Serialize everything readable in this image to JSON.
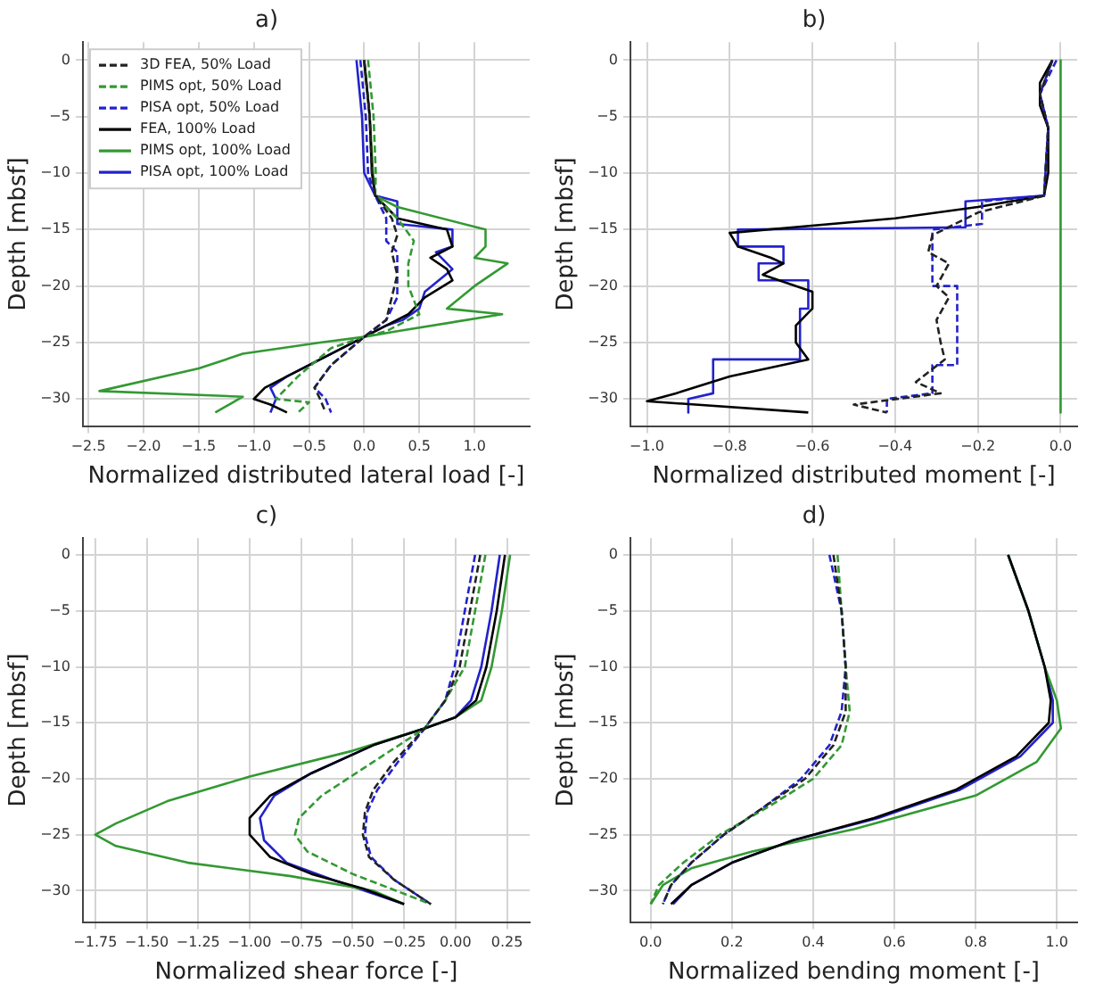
{
  "chart_data": [
    {
      "type": "line",
      "title": "a)",
      "xlabel": "Normalized distributed lateral load [-]",
      "ylabel": "Depth [mbsf]",
      "xlim": [
        -2.55,
        1.5
      ],
      "ylim": [
        -32.4,
        1.6
      ],
      "xticks": [
        {
          "value": -2.5,
          "label": "−2.5"
        },
        {
          "value": -2,
          "label": "−2.0"
        },
        {
          "value": -1.5,
          "label": "−1.5"
        },
        {
          "value": -1,
          "label": "−1.0"
        },
        {
          "value": -0.5,
          "label": "−0.5"
        },
        {
          "value": 0,
          "label": "0.0"
        },
        {
          "value": 0.5,
          "label": "0.5"
        },
        {
          "value": 1,
          "label": "1.0"
        }
      ],
      "yticks": [
        {
          "value": 0,
          "label": "0"
        },
        {
          "value": -5,
          "label": "−5"
        },
        {
          "value": -10,
          "label": "−10"
        },
        {
          "value": -15,
          "label": "−15"
        },
        {
          "value": -20,
          "label": "−20"
        },
        {
          "value": -25,
          "label": "−25"
        },
        {
          "value": -30,
          "label": "−30"
        }
      ],
      "grid": true,
      "legend": "top left",
      "marker": "none",
      "series": [
        {
          "name": "3D FEA, 50% Load",
          "color": "#222222",
          "line_style": "dashed",
          "x": [
            0,
            0.05,
            0.07,
            0.1,
            0.25,
            0.3,
            0.25,
            0.3,
            0.25,
            0.2,
            0,
            -0.3,
            -0.45,
            -0.4,
            -0.35
          ],
          "values": [
            0,
            -5,
            -10,
            -12,
            -14,
            -15.5,
            -17,
            -19,
            -21,
            -23,
            -24.5,
            -27,
            -29,
            -30,
            -31.2
          ]
        },
        {
          "name": "PIMS opt, 50% Load",
          "color": "#339933",
          "line_style": "dashed",
          "x": [
            0.035,
            0.085,
            0.105,
            0.1,
            0.3,
            0.45,
            0.4,
            0.4,
            0.5,
            0.2,
            0,
            -0.3,
            -0.6,
            -0.8,
            -0.5,
            -0.6
          ],
          "values": [
            0,
            -5,
            -10,
            -12,
            -14,
            -16,
            -18,
            -20,
            -22.5,
            -24,
            -24.5,
            -25.5,
            -28,
            -30,
            -30.3,
            -31.2
          ]
        },
        {
          "name": "PISA opt, 50% Load",
          "color": "#2222cc",
          "line_style": "dashed",
          "x": [
            -0.035,
            0.015,
            0.035,
            0.1,
            0.2,
            0.2,
            0.3,
            0.3,
            0.3,
            0.2,
            0,
            -0.3,
            -0.45,
            -0.35,
            -0.3
          ],
          "values": [
            0,
            -5,
            -10,
            -12,
            -14,
            -16,
            -17,
            -19,
            -21,
            -23,
            -24.5,
            -27,
            -29,
            -30,
            -31.2
          ]
        },
        {
          "name": "FEA, 100% Load",
          "color": "#000000",
          "line_style": "solid",
          "x": [
            0,
            0.05,
            0.07,
            0.1,
            0.2,
            0.3,
            0.75,
            0.8,
            0.6,
            0.75,
            0.8,
            0.55,
            0.4,
            0.2,
            0,
            -0.3,
            -0.6,
            -0.9,
            -1,
            -0.85,
            -0.7
          ],
          "values": [
            0,
            -5,
            -10,
            -12,
            -13,
            -14,
            -15,
            -16.5,
            -17.5,
            -18.5,
            -19.5,
            -21,
            -22.5,
            -23.5,
            -24.5,
            -26,
            -27.5,
            -29,
            -30,
            -30.5,
            -31.2
          ]
        },
        {
          "name": "PIMS opt, 100% Load",
          "color": "#339933",
          "line_style": "solid",
          "x": [
            0,
            0.05,
            0.08,
            0.1,
            0.3,
            1.1,
            1.1,
            1,
            1.3,
            1,
            0.75,
            1.25,
            0.3,
            0,
            -0.4,
            -1.1,
            -1.5,
            -2.4,
            -1.1,
            -1.35
          ],
          "values": [
            0,
            -5,
            -10,
            -12,
            -13,
            -15,
            -16.5,
            -17.5,
            -18,
            -20,
            -22,
            -22.5,
            -24,
            -24.5,
            -25,
            -26,
            -27.3,
            -29.3,
            -29.8,
            -31.2
          ]
        },
        {
          "name": "PISA opt, 100% Load",
          "color": "#2222cc",
          "line_style": "solid",
          "x": [
            -0.07,
            -0.02,
            0,
            0.1,
            0.3,
            0.3,
            0.8,
            0.8,
            0.65,
            0.8,
            0.55,
            0.5,
            0.35,
            0.2,
            0,
            -0.3,
            -0.7,
            -0.85,
            -0.8,
            -0.85
          ],
          "values": [
            0,
            -5,
            -10,
            -12,
            -12.5,
            -14.5,
            -15,
            -16.5,
            -17,
            -18.5,
            -20.5,
            -22,
            -23,
            -23.5,
            -24.5,
            -26,
            -28,
            -29,
            -30,
            -31.2
          ]
        }
      ]
    },
    {
      "type": "line",
      "title": "b)",
      "xlabel": "Normalized distributed moment [-]",
      "ylabel": "Depth [mbsf]",
      "xlim": [
        -1.04,
        0.04
      ],
      "ylim": [
        -32.4,
        1.6
      ],
      "xticks": [
        {
          "value": -1,
          "label": "−1.0"
        },
        {
          "value": -0.8,
          "label": "−0.8"
        },
        {
          "value": -0.6,
          "label": "−0.6"
        },
        {
          "value": -0.4,
          "label": "−0.4"
        },
        {
          "value": -0.2,
          "label": "−0.2"
        },
        {
          "value": 0,
          "label": "0.0"
        }
      ],
      "yticks": [
        {
          "value": 0,
          "label": "0"
        },
        {
          "value": -5,
          "label": "−5"
        },
        {
          "value": -10,
          "label": "−10"
        },
        {
          "value": -15,
          "label": "−15"
        },
        {
          "value": -20,
          "label": "−20"
        },
        {
          "value": -25,
          "label": "−25"
        },
        {
          "value": -30,
          "label": "−30"
        }
      ],
      "grid": true,
      "marker": "none",
      "series": [
        {
          "color": "#222222",
          "line_style": "dashed",
          "x": [
            -0.02,
            -0.05,
            -0.03,
            -0.04,
            -0.2,
            -0.31,
            -0.32,
            -0.27,
            -0.3,
            -0.27,
            -0.3,
            -0.29,
            -0.28,
            -0.35,
            -0.29,
            -0.5,
            -0.42
          ],
          "values": [
            0,
            -3,
            -6,
            -12,
            -13.5,
            -15.5,
            -17,
            -18,
            -20,
            -21,
            -23,
            -25,
            -26.5,
            -28.5,
            -29.5,
            -30.5,
            -31.2
          ]
        },
        {
          "color": "#2222cc",
          "line_style": "dashed",
          "x": [
            -0.01,
            -0.05,
            -0.03,
            -0.04,
            -0.19,
            -0.19,
            -0.31,
            -0.31,
            -0.25,
            -0.25,
            -0.31,
            -0.31,
            -0.42,
            -0.42
          ],
          "values": [
            0,
            -3,
            -6,
            -12,
            -12.5,
            -14.5,
            -15,
            -20,
            -20,
            -27,
            -27,
            -29.5,
            -30,
            -31.2
          ]
        },
        {
          "color": "#000000",
          "line_style": "solid",
          "x": [
            -0.02,
            -0.05,
            -0.05,
            -0.03,
            -0.03,
            -0.04,
            -0.2,
            -0.4,
            -0.8,
            -0.78,
            -0.7,
            -0.67,
            -0.72,
            -0.6,
            -0.6,
            -0.64,
            -0.64,
            -0.61,
            -0.8,
            -0.93,
            -1,
            -0.61
          ],
          "values": [
            0,
            -2,
            -4,
            -6,
            -10,
            -12,
            -13,
            -14,
            -15.3,
            -16.5,
            -17.5,
            -18,
            -19,
            -20.5,
            -22,
            -23.5,
            -25,
            -26.5,
            -28,
            -29.5,
            -30.2,
            -31.2
          ]
        },
        {
          "color": "#339933",
          "line_style": "solid",
          "x": [
            0,
            0
          ],
          "values": [
            0,
            -31.2
          ]
        },
        {
          "color": "#2222cc",
          "line_style": "solid",
          "x": [
            -0.02,
            -0.05,
            -0.03,
            -0.04,
            -0.23,
            -0.23,
            -0.78,
            -0.78,
            -0.67,
            -0.67,
            -0.73,
            -0.73,
            -0.61,
            -0.61,
            -0.63,
            -0.63,
            -0.84,
            -0.84,
            -0.9,
            -0.9
          ],
          "values": [
            0,
            -3,
            -6,
            -12,
            -12.5,
            -14.8,
            -15,
            -16.5,
            -16.5,
            -18,
            -18,
            -19.5,
            -19.5,
            -22,
            -22,
            -26.5,
            -26.5,
            -29.5,
            -30,
            -31.2
          ]
        }
      ]
    },
    {
      "type": "line",
      "title": "c)",
      "xlabel": "Normalized shear force [-]",
      "ylabel": "Depth [mbsf]",
      "xlim": [
        -1.81,
        0.36
      ],
      "ylim": [
        -32.8,
        1.5
      ],
      "xticks": [
        {
          "value": -1.75,
          "label": "−1.75"
        },
        {
          "value": -1.5,
          "label": "−1.50"
        },
        {
          "value": -1.25,
          "label": "−1.25"
        },
        {
          "value": -1,
          "label": "−1.00"
        },
        {
          "value": -0.75,
          "label": "−0.75"
        },
        {
          "value": -0.5,
          "label": "−0.50"
        },
        {
          "value": -0.25,
          "label": "−0.25"
        },
        {
          "value": 0,
          "label": "0.00"
        },
        {
          "value": 0.25,
          "label": "0.25"
        }
      ],
      "yticks": [
        {
          "value": 0,
          "label": "0"
        },
        {
          "value": -5,
          "label": "−5"
        },
        {
          "value": -10,
          "label": "−10"
        },
        {
          "value": -15,
          "label": "−15"
        },
        {
          "value": -20,
          "label": "−20"
        },
        {
          "value": -25,
          "label": "−25"
        },
        {
          "value": -30,
          "label": "−30"
        }
      ],
      "grid": true,
      "marker": "none",
      "series": [
        {
          "color": "#222222",
          "line_style": "dashed",
          "x": [
            0.12,
            0.07,
            0.02,
            -0.05,
            -0.15,
            -0.3,
            -0.4,
            -0.44,
            -0.45,
            -0.42,
            -0.3,
            -0.12
          ],
          "values": [
            0,
            -5,
            -10,
            -13,
            -15.5,
            -18.5,
            -21,
            -23,
            -25,
            -27,
            -29,
            -31.2
          ]
        },
        {
          "color": "#339933",
          "line_style": "dashed",
          "x": [
            0.145,
            0.095,
            0.045,
            -0.05,
            -0.15,
            -0.4,
            -0.65,
            -0.76,
            -0.78,
            -0.72,
            -0.5,
            -0.12
          ],
          "values": [
            0,
            -5,
            -10,
            -13,
            -15.5,
            -18.5,
            -21.5,
            -23.5,
            -25,
            -26.5,
            -28.5,
            -31.2
          ]
        },
        {
          "color": "#2222cc",
          "line_style": "dashed",
          "x": [
            0.095,
            0.045,
            -0.005,
            -0.05,
            -0.15,
            -0.28,
            -0.38,
            -0.43,
            -0.44,
            -0.41,
            -0.3,
            -0.12
          ],
          "values": [
            0,
            -5,
            -10,
            -13,
            -15.5,
            -18.5,
            -21,
            -23,
            -25,
            -27,
            -29,
            -31.2
          ]
        },
        {
          "color": "#000000",
          "line_style": "solid",
          "x": [
            0.24,
            0.2,
            0.15,
            0.1,
            0,
            -0.15,
            -0.4,
            -0.7,
            -0.9,
            -1,
            -1,
            -0.9,
            -0.7,
            -0.45,
            -0.25
          ],
          "values": [
            0,
            -5,
            -10,
            -13,
            -14.5,
            -15.5,
            -17,
            -19.5,
            -21.5,
            -23.5,
            -25,
            -27,
            -28.5,
            -29.8,
            -31.2
          ]
        },
        {
          "color": "#339933",
          "line_style": "solid",
          "x": [
            0.265,
            0.225,
            0.175,
            0.125,
            0,
            -0.15,
            -0.5,
            -1,
            -1.4,
            -1.65,
            -1.75,
            -1.65,
            -1.3,
            -0.8,
            -0.4,
            -0.25
          ],
          "values": [
            0,
            -5,
            -10,
            -13,
            -14.5,
            -15.5,
            -17.5,
            -19.8,
            -22,
            -24,
            -25,
            -26,
            -27.5,
            -28.7,
            -30,
            -31.2
          ]
        },
        {
          "color": "#2222cc",
          "line_style": "solid",
          "x": [
            0.215,
            0.175,
            0.125,
            0.075,
            0,
            -0.15,
            -0.4,
            -0.7,
            -0.88,
            -0.95,
            -0.93,
            -0.82,
            -0.6,
            -0.25
          ],
          "values": [
            0,
            -5,
            -10,
            -13,
            -14.5,
            -15.5,
            -17,
            -19.5,
            -21.5,
            -23.5,
            -25.5,
            -27.5,
            -29,
            -31.2
          ]
        }
      ]
    },
    {
      "type": "line",
      "title": "d)",
      "xlabel": "Normalized bending moment [-]",
      "ylabel": "Depth [mbsf]",
      "xlim": [
        -0.05,
        1.05
      ],
      "ylim": [
        -32.8,
        1.5
      ],
      "xticks": [
        {
          "value": 0,
          "label": "0.0"
        },
        {
          "value": 0.2,
          "label": "0.2"
        },
        {
          "value": 0.4,
          "label": "0.4"
        },
        {
          "value": 0.6,
          "label": "0.6"
        },
        {
          "value": 0.8,
          "label": "0.8"
        },
        {
          "value": 1,
          "label": "1.0"
        }
      ],
      "yticks": [
        {
          "value": 0,
          "label": "0"
        },
        {
          "value": -5,
          "label": "−5"
        },
        {
          "value": -10,
          "label": "−10"
        },
        {
          "value": -15,
          "label": "−15"
        },
        {
          "value": -20,
          "label": "−20"
        },
        {
          "value": -25,
          "label": "−25"
        },
        {
          "value": -30,
          "label": "−30"
        }
      ],
      "grid": true,
      "marker": "none",
      "series": [
        {
          "color": "#222222",
          "line_style": "dashed",
          "x": [
            0.45,
            0.47,
            0.48,
            0.48,
            0.45,
            0.38,
            0.28,
            0.18,
            0.1,
            0.05,
            0.03
          ],
          "values": [
            0,
            -5,
            -10,
            -14,
            -17,
            -20,
            -22.5,
            -25,
            -27.5,
            -29.5,
            -31.2
          ]
        },
        {
          "color": "#339933",
          "line_style": "dashed",
          "x": [
            0.46,
            0.47,
            0.48,
            0.49,
            0.47,
            0.4,
            0.29,
            0.17,
            0.08,
            0.02,
            0
          ],
          "values": [
            0,
            -5,
            -10,
            -14,
            -17,
            -20,
            -22.5,
            -25,
            -27.5,
            -29.5,
            -31.2
          ]
        },
        {
          "color": "#2222cc",
          "line_style": "dashed",
          "x": [
            0.44,
            0.47,
            0.48,
            0.47,
            0.44,
            0.37,
            0.28,
            0.18,
            0.1,
            0.05,
            0.03
          ],
          "values": [
            0,
            -5,
            -10,
            -14,
            -17,
            -20,
            -22.5,
            -25,
            -27.5,
            -29.5,
            -31.2
          ]
        },
        {
          "color": "#000000",
          "line_style": "solid",
          "x": [
            0.88,
            0.93,
            0.97,
            0.985,
            0.98,
            0.9,
            0.75,
            0.55,
            0.35,
            0.2,
            0.1,
            0.05
          ],
          "values": [
            0,
            -5,
            -10,
            -13,
            -15,
            -18,
            -21,
            -23.5,
            -25.5,
            -27.5,
            -29.5,
            -31.2
          ]
        },
        {
          "color": "#339933",
          "line_style": "solid",
          "x": [
            0.88,
            0.93,
            0.97,
            1,
            1.01,
            0.95,
            0.8,
            0.5,
            0.25,
            0.1,
            0.03,
            0
          ],
          "values": [
            0,
            -5,
            -10,
            -13,
            -15.5,
            -18.5,
            -21.5,
            -24.5,
            -26.5,
            -28,
            -29.5,
            -31.2
          ]
        },
        {
          "color": "#2222cc",
          "line_style": "solid",
          "x": [
            0.88,
            0.93,
            0.97,
            0.99,
            0.99,
            0.91,
            0.76,
            0.56,
            0.35,
            0.2,
            0.1,
            0.055
          ],
          "values": [
            0,
            -5,
            -10,
            -13,
            -15,
            -18,
            -21,
            -23.5,
            -25.5,
            -27.5,
            -29.5,
            -31.2
          ]
        }
      ]
    }
  ]
}
